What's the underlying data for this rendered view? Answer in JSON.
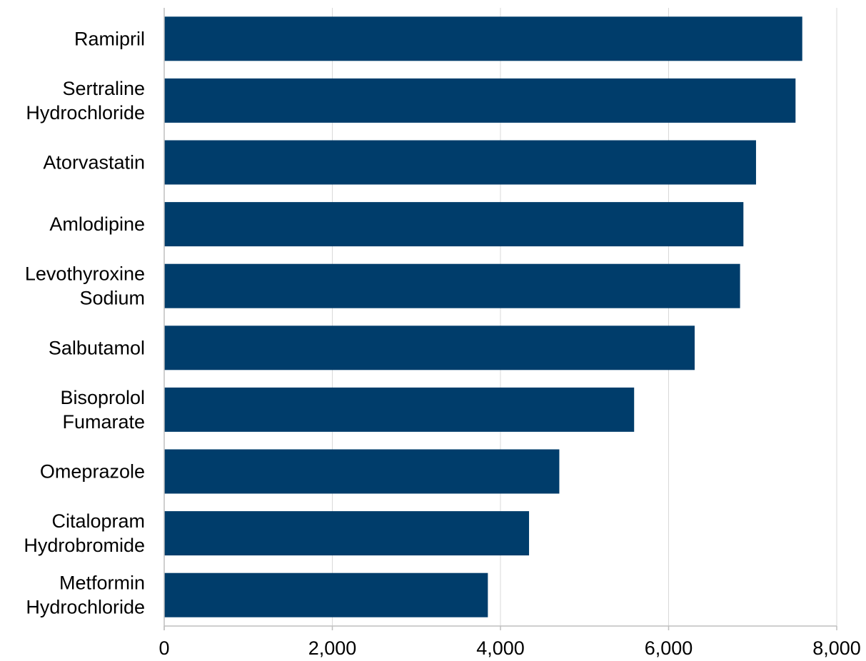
{
  "chart_data": {
    "type": "bar",
    "orientation": "horizontal",
    "categories": [
      "Ramipril",
      "Sertraline Hydrochloride",
      "Atorvastatin",
      "Amlodipine",
      "Levothyroxine Sodium",
      "Salbutamol",
      "Bisoprolol Fumarate",
      "Omeprazole",
      "Citalopram Hydrobromide",
      "Metformin Hydrochloride"
    ],
    "category_lines": [
      [
        "Ramipril"
      ],
      [
        "Sertraline",
        "Hydrochloride"
      ],
      [
        "Atorvastatin"
      ],
      [
        "Amlodipine"
      ],
      [
        "Levothyroxine",
        "Sodium"
      ],
      [
        "Salbutamol"
      ],
      [
        "Bisoprolol",
        "Fumarate"
      ],
      [
        "Omeprazole"
      ],
      [
        "Citalopram",
        "Hydrobromide"
      ],
      [
        "Metformin",
        "Hydrochloride"
      ]
    ],
    "values": [
      7590,
      7510,
      7040,
      6890,
      6850,
      6310,
      5590,
      4700,
      4340,
      3850
    ],
    "xlim": [
      0,
      8000
    ],
    "xticks": [
      0,
      2000,
      4000,
      6000,
      8000
    ],
    "xtick_labels": [
      "0",
      "2,000",
      "4,000",
      "6,000",
      "8,000"
    ],
    "title": "",
    "xlabel": "",
    "ylabel": "",
    "grid": true,
    "legend": "none",
    "bar_color": "#003d6b",
    "grid_color": "#d9d9d9",
    "axis_color": "#bfbfbf"
  }
}
